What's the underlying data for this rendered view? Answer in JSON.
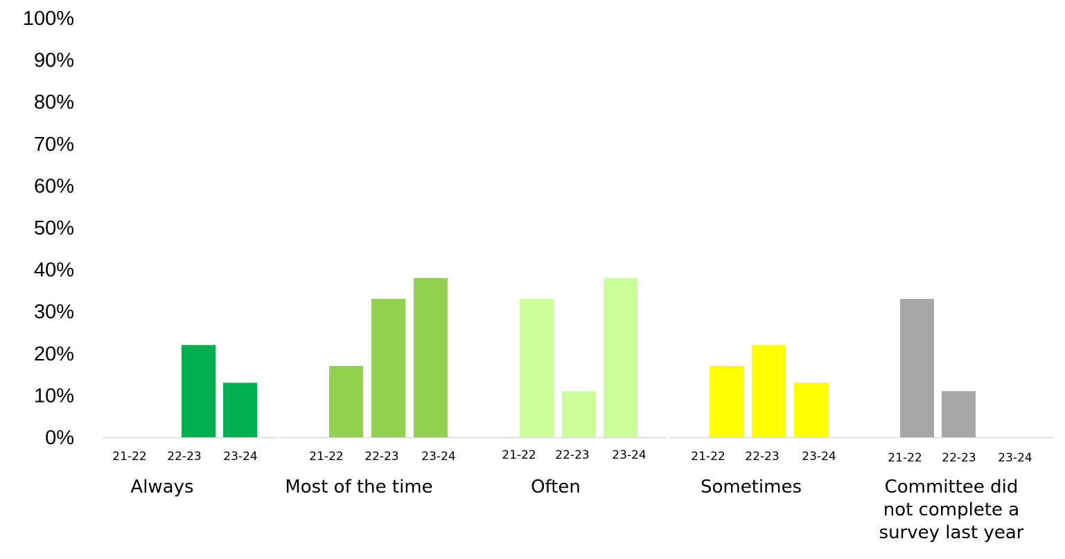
{
  "chart_data": {
    "type": "bar",
    "title": "",
    "xlabel": "",
    "ylabel": "",
    "ylim": [
      0,
      1
    ],
    "y_ticks": [
      "0%",
      "10%",
      "20%",
      "30%",
      "40%",
      "50%",
      "60%",
      "70%",
      "80%",
      "90%",
      "100%"
    ],
    "grid": false,
    "legend": "none",
    "groups": [
      {
        "label": "Always",
        "label_lines": [
          "Always"
        ],
        "color": "#00b050",
        "bars": [
          {
            "period": "21-22",
            "value": 0.0
          },
          {
            "period": "22-23",
            "value": 0.22
          },
          {
            "period": "23-24",
            "value": 0.13
          }
        ]
      },
      {
        "label": "Most of the time",
        "label_lines": [
          "Most of the time"
        ],
        "color": "#92d050",
        "bars": [
          {
            "period": "21-22",
            "value": 0.17
          },
          {
            "period": "22-23",
            "value": 0.33
          },
          {
            "period": "23-24",
            "value": 0.38
          }
        ]
      },
      {
        "label": "Often",
        "label_lines": [
          "Often"
        ],
        "color": "#ccff99",
        "bars": [
          {
            "period": "21-22",
            "value": 0.33
          },
          {
            "period": "22-23",
            "value": 0.11
          },
          {
            "period": "23-24",
            "value": 0.38
          }
        ]
      },
      {
        "label": "Sometimes",
        "label_lines": [
          "Sometimes"
        ],
        "color": "#ffff00",
        "bars": [
          {
            "period": "21-22",
            "value": 0.17
          },
          {
            "period": "22-23",
            "value": 0.22
          },
          {
            "period": "23-24",
            "value": 0.13
          }
        ]
      },
      {
        "label": "Committee did not complete a survey last year",
        "label_lines": [
          "Committee did",
          "not complete a",
          "survey last year"
        ],
        "color": "#a6a6a6",
        "bars": [
          {
            "period": "21-22",
            "value": 0.33
          },
          {
            "period": "22-23",
            "value": 0.11
          },
          {
            "period": "23-24",
            "value": 0.0
          }
        ]
      }
    ]
  }
}
